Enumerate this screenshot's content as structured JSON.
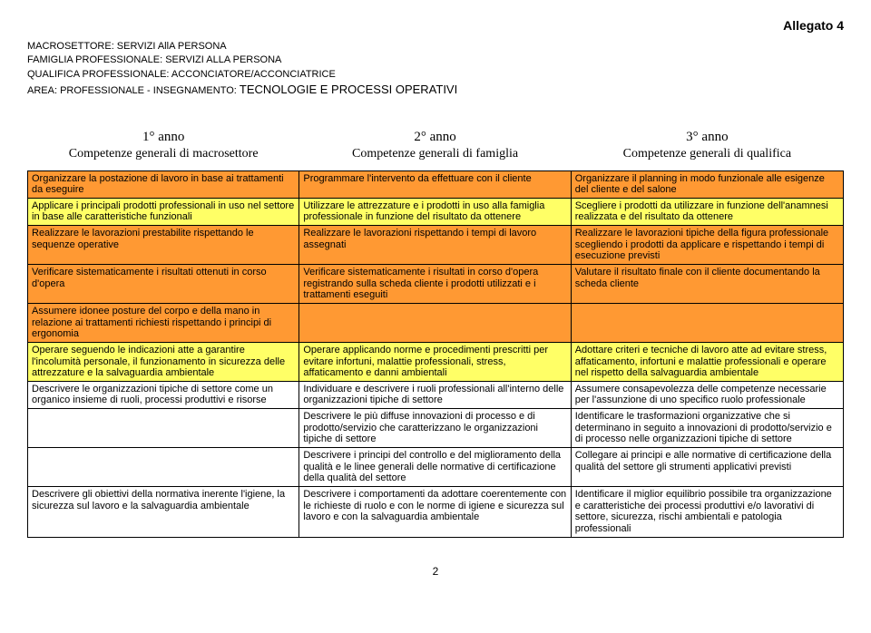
{
  "allegato": "Allegato 4",
  "header": {
    "macrosettore": "MACROSETTORE: SERVIZI AllA PERSONA",
    "famiglia": "FAMIGLIA PROFESSIONALE: SERVIZI ALLA PERSONA",
    "qualifica": "QUALIFICA PROFESSIONALE: ACCONCIATORE/ACCONCIATRICE",
    "area_prefix": "AREA: PROFESSIONALE  -  INSEGNAMENTO: ",
    "area_bold": "TECNOLOGIE E PROCESSI OPERATIVI"
  },
  "table_headers": {
    "year1": "1° anno",
    "year2": "2° anno",
    "year3": "3° anno",
    "comp1": "Competenze generali di  macrosettore",
    "comp2": "Competenze generali di  famiglia",
    "comp3": "Competenze generali di qualifica"
  },
  "rows": [
    {
      "color": "orange",
      "c1": "Organizzare la postazione di lavoro in base ai trattamenti da eseguire",
      "c2": "Programmare l'intervento da effettuare con il cliente",
      "c3": "Organizzare il planning in modo funzionale alle esigenze del cliente e del salone"
    },
    {
      "color": "yellow",
      "c1": "Applicare i principali prodotti professionali in uso nel settore in base alle caratteristiche funzionali",
      "c2": "Utilizzare le attrezzature e i prodotti in uso alla famiglia professionale in funzione del risultato da ottenere",
      "c3": "Scegliere i prodotti da utilizzare in funzione dell'anamnesi realizzata e del risultato da ottenere"
    },
    {
      "color": "orange",
      "c1": "Realizzare le lavorazioni prestabilite rispettando le sequenze operative",
      "c2": "Realizzare le lavorazioni rispettando i tempi  di lavoro assegnati",
      "c3": "Realizzare le lavorazioni tipiche della figura professionale scegliendo i prodotti da applicare e rispettando i tempi di esecuzione previsti"
    },
    {
      "color": "orange",
      "c1": "Verificare sistematicamente i risultati ottenuti in corso d'opera",
      "c2": "Verificare sistematicamente i risultati in corso d'opera registrando sulla scheda cliente i prodotti utilizzati e i trattamenti eseguiti",
      "c3": "Valutare il risultato finale con il cliente documentando la scheda cliente"
    },
    {
      "color": "orange",
      "c1": "Assumere idonee posture del corpo e della mano in relazione ai trattamenti richiesti rispettando i principi di ergonomia",
      "c2": "",
      "c3": ""
    },
    {
      "color": "yellow",
      "c1": "Operare seguendo le indicazioni atte a garantire l'incolumità personale, il funzionamento in sicurezza delle attrezzature e la salvaguardia ambientale",
      "c2": " Operare applicando norme e procedimenti prescritti per evitare infortuni, malattie professionali, stress, affaticamento e danni ambientali",
      "c3": "Adottare criteri e tecniche di lavoro atte ad evitare stress, affaticamento, infortuni e malattie professionali e operare nel rispetto della salvaguardia ambientale"
    },
    {
      "color": "white",
      "c1": "Descrivere le organizzazioni tipiche di settore come un organico insieme di ruoli, processi produttivi e risorse",
      "c2": "Individuare e descrivere i ruoli  professionali all'interno delle organizzazioni tipiche di settore",
      "c3": "Assumere consapevolezza delle competenze necessarie per l'assunzione di uno specifico ruolo professionale"
    },
    {
      "color": "white",
      "c1": "",
      "c2": "Descrivere le più diffuse innovazioni di processo e di prodotto/servizio che caratterizzano le organizzazioni tipiche di settore",
      "c3": "Identificare le trasformazioni organizzative che si determinano in seguito a innovazioni di prodotto/servizio e di processo nelle organizzazioni tipiche di settore"
    },
    {
      "color": "white",
      "c1": "",
      "c2": "Descrivere i principi del controllo e del miglioramento della qualità e le linee generali delle normative di certificazione della qualità del settore",
      "c3": "Collegare ai principi e alle normative di certificazione della qualità del settore gli strumenti applicativi previsti"
    },
    {
      "color": "white",
      "c1": "Descrivere gli obiettivi della normativa inerente l'igiene, la sicurezza sul lavoro e la salvaguardia ambientale",
      "c2": "Descrivere i comportamenti da adottare coerentemente con le richieste di ruolo e con le norme di igiene e sicurezza sul lavoro e con la salvaguardia ambientale",
      "c3": "Identificare il miglior equilibrio possibile tra organizzazione e caratteristiche dei processi produttivi e/o lavorativi di settore, sicurezza, rischi ambientali e patologia professionali"
    }
  ],
  "page_number": "2",
  "colors": {
    "orange": "#ff9933",
    "yellow": "#ffff66",
    "white": "#ffffff"
  }
}
